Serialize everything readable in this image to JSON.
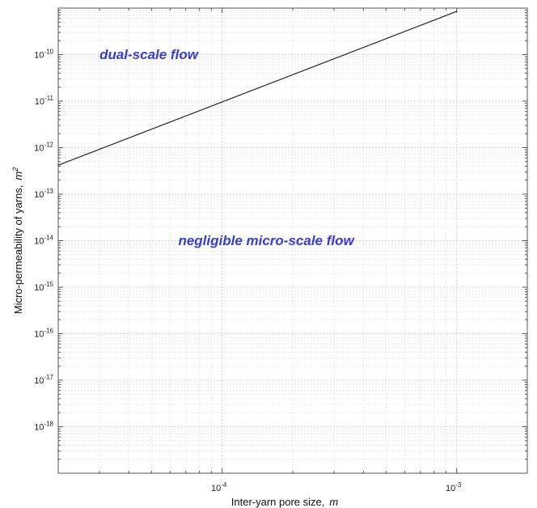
{
  "chart_data": {
    "type": "line",
    "x_scale": "log",
    "y_scale": "log",
    "xlim": [
      2e-05,
      0.002
    ],
    "ylim": [
      1e-19,
      1e-09
    ],
    "grid": true,
    "xlabel": "Inter-yarn pore size,",
    "xlabel_unit": "m",
    "ylabel": "Micro-permeability of yarns,",
    "ylabel_unit": "m",
    "ylabel_unit_exp": "2",
    "x_ticks": [
      {
        "base": "10",
        "exp": "-4",
        "value": 0.0001
      },
      {
        "base": "10",
        "exp": "-3",
        "value": 0.001
      }
    ],
    "y_ticks": [
      {
        "base": "10",
        "exp": "-10",
        "value": 1e-10
      },
      {
        "base": "10",
        "exp": "-11",
        "value": 1e-11
      },
      {
        "base": "10",
        "exp": "-12",
        "value": 1e-12
      },
      {
        "base": "10",
        "exp": "-13",
        "value": 1e-13
      },
      {
        "base": "10",
        "exp": "-14",
        "value": 1e-14
      },
      {
        "base": "10",
        "exp": "-15",
        "value": 1e-15
      },
      {
        "base": "10",
        "exp": "-16",
        "value": 1e-16
      },
      {
        "base": "10",
        "exp": "-17",
        "value": 1e-17
      },
      {
        "base": "10",
        "exp": "-18",
        "value": 1e-18
      }
    ],
    "series": [
      {
        "x": [
          2e-05,
          0.001
        ],
        "y": [
          4.2e-13,
          8.5e-10
        ],
        "color": "#222222"
      }
    ],
    "annotations": [
      {
        "text": "dual-scale flow",
        "x": 3e-05,
        "y": 8e-11,
        "color": "#3a3ec8"
      },
      {
        "text": "negligible micro-scale flow",
        "x": 6.5e-05,
        "y": 8e-15,
        "color": "#3a3ec8"
      }
    ]
  }
}
